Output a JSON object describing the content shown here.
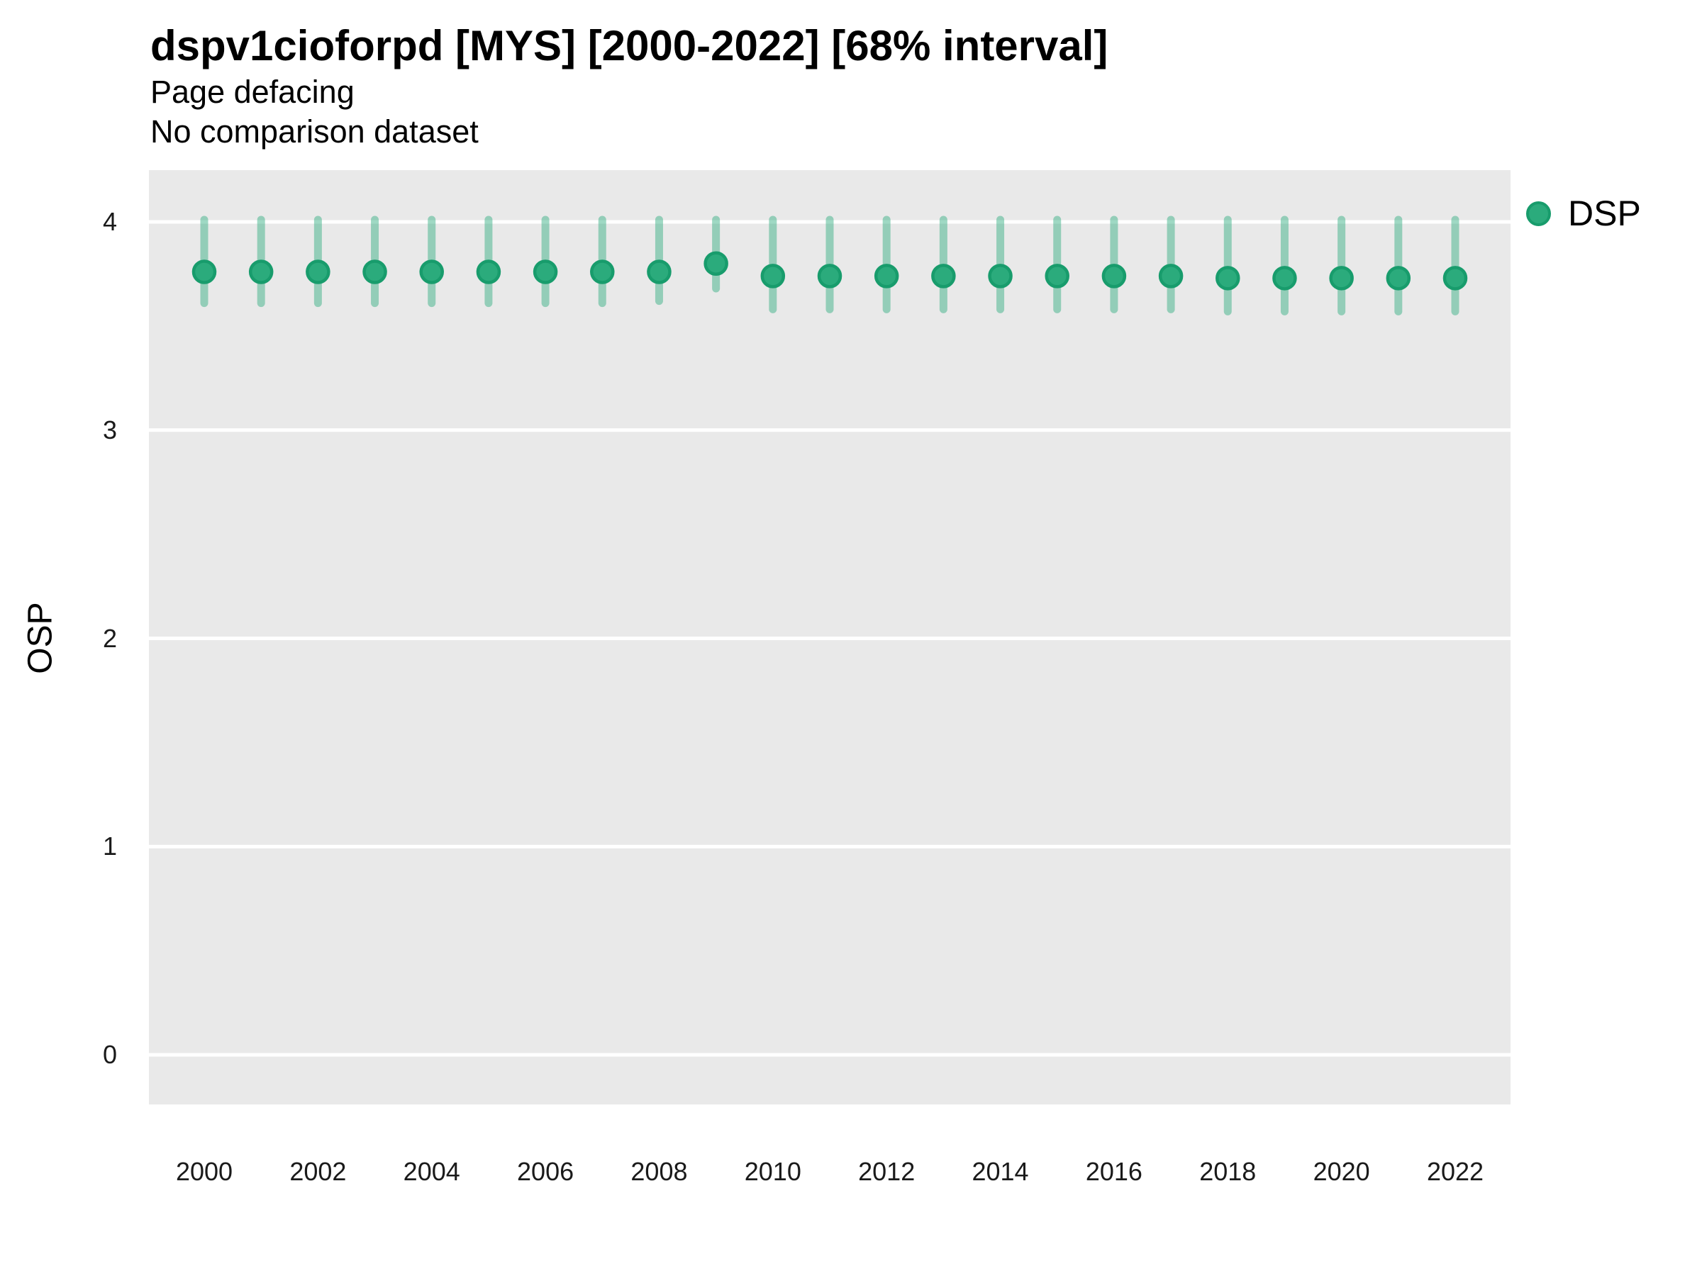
{
  "header": {
    "title": "dspv1cioforpd [MYS] [2000-2022] [68% interval]",
    "subtitle1": "Page defacing",
    "subtitle2": "No comparison dataset"
  },
  "legend": {
    "label": "DSP",
    "position": "right-top"
  },
  "colors": {
    "point_fill": "#2BAB7C",
    "point_border": "#189C6C",
    "interval_bar": "rgba(43,171,124,0.45)",
    "panel_background": "#E9E9E9",
    "gridline": "#FFFFFF",
    "text": "#000000",
    "tick_text": "#1A1A1A"
  },
  "chart_data": {
    "type": "scatter",
    "title": "dspv1cioforpd [MYS] [2000-2022] [68% interval]",
    "subtitle": [
      "Page defacing",
      "No comparison dataset"
    ],
    "xlabel": "",
    "ylabel": "OSP",
    "legend_position": "right",
    "grid": "horizontal-major-only",
    "xlim": [
      2000,
      2022
    ],
    "ylim": [
      0,
      4
    ],
    "y_ticks": [
      0,
      1,
      2,
      3,
      4
    ],
    "x_ticks": [
      2000,
      2002,
      2004,
      2006,
      2008,
      2010,
      2012,
      2014,
      2016,
      2018,
      2020,
      2022
    ],
    "interval_level": "68%",
    "series": [
      {
        "name": "DSP",
        "x": [
          2000,
          2001,
          2002,
          2003,
          2004,
          2005,
          2006,
          2007,
          2008,
          2009,
          2010,
          2011,
          2012,
          2013,
          2014,
          2015,
          2016,
          2017,
          2018,
          2019,
          2020,
          2021,
          2022
        ],
        "values": [
          3.76,
          3.76,
          3.76,
          3.76,
          3.76,
          3.76,
          3.76,
          3.76,
          3.76,
          3.8,
          3.74,
          3.74,
          3.74,
          3.74,
          3.74,
          3.74,
          3.74,
          3.74,
          3.73,
          3.73,
          3.73,
          3.73,
          3.73
        ],
        "lower_68": [
          3.61,
          3.61,
          3.61,
          3.61,
          3.61,
          3.61,
          3.61,
          3.61,
          3.62,
          3.68,
          3.58,
          3.58,
          3.58,
          3.58,
          3.58,
          3.58,
          3.58,
          3.58,
          3.57,
          3.57,
          3.57,
          3.57,
          3.57
        ],
        "upper_68": [
          4.0,
          4.0,
          4.0,
          4.0,
          4.0,
          4.0,
          4.0,
          4.0,
          4.0,
          4.0,
          4.0,
          4.0,
          4.0,
          4.0,
          4.0,
          4.0,
          4.0,
          4.0,
          4.0,
          4.0,
          4.0,
          4.0,
          4.0
        ]
      }
    ]
  }
}
